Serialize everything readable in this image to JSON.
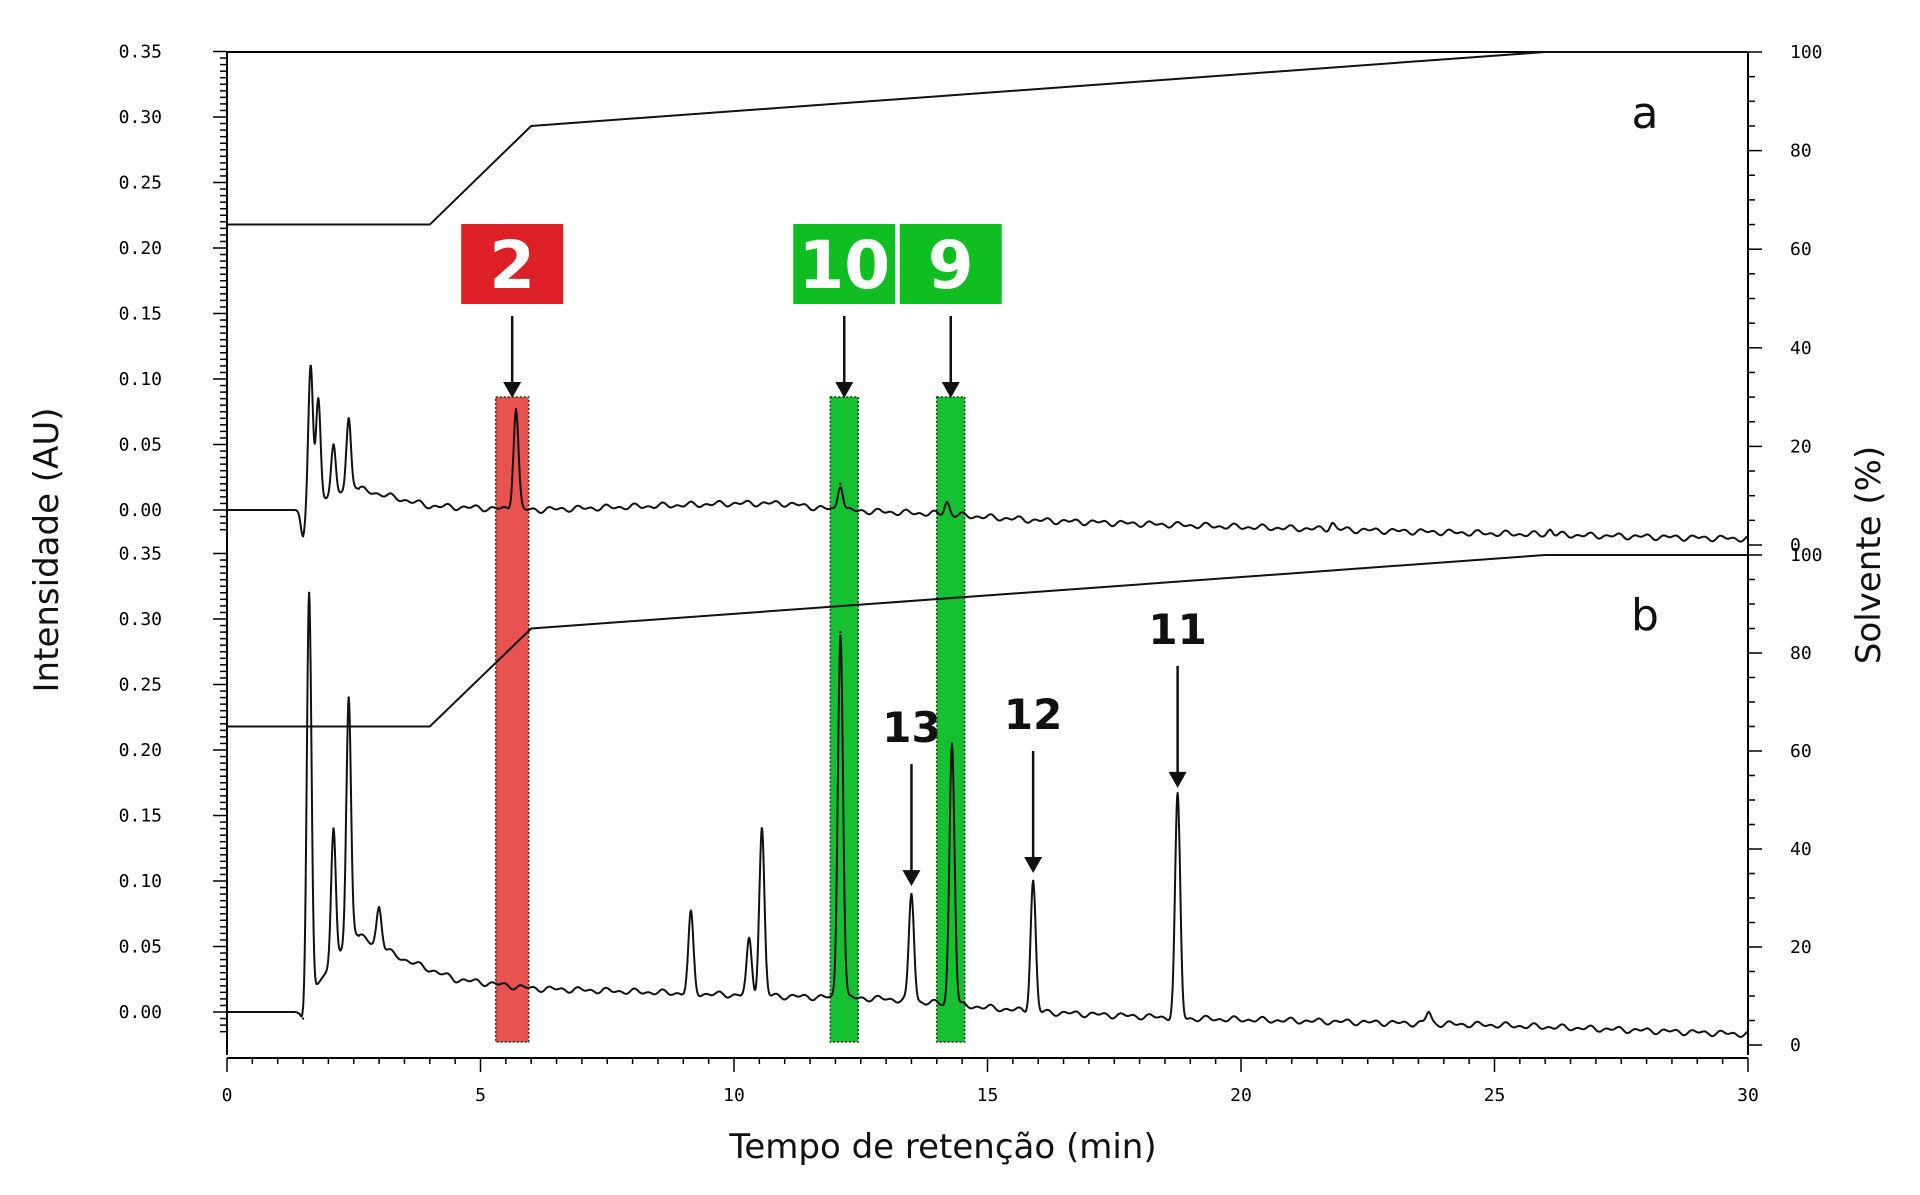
{
  "chart_data": [
    {
      "type": "line",
      "panel": "a",
      "xlabel": "Tempo de retenção (min)",
      "ylabel_left": "Intensidade (AU)",
      "ylabel_right": "Solvente (%)",
      "xlim": [
        0,
        30
      ],
      "ylim_left": [
        -0.03,
        0.36
      ],
      "ylim_right": [
        0,
        100
      ],
      "x_ticks": [
        "0",
        "5",
        "10",
        "15",
        "20",
        "25",
        "30"
      ],
      "y_ticks_left": [
        "0.00",
        "0.05",
        "0.10",
        "0.15",
        "0.20",
        "0.25",
        "0.30",
        "0.35"
      ],
      "y_ticks_right": [
        "0",
        "20",
        "40",
        "60",
        "80",
        "100"
      ],
      "series": [
        {
          "role": "solvent gradient",
          "x": [
            0,
            4,
            6,
            26,
            30
          ],
          "y": [
            65,
            65,
            85,
            100,
            100
          ]
        },
        {
          "role": "chromatogram",
          "baseline": [
            [
              0,
              0.0
            ],
            [
              1.4,
              0.0
            ],
            [
              2.5,
              0.017
            ],
            [
              4,
              0.003
            ],
            [
              6,
              0.0
            ],
            [
              10,
              0.005
            ],
            [
              11,
              0.005
            ],
            [
              12,
              0.0
            ],
            [
              14,
              -0.003
            ],
            [
              16,
              -0.008
            ],
            [
              20,
              -0.013
            ],
            [
              25,
              -0.018
            ],
            [
              30,
              -0.022
            ]
          ],
          "peaks": [
            {
              "x": 1.5,
              "y": -0.02
            },
            {
              "x": 1.65,
              "y": 0.11
            },
            {
              "x": 1.8,
              "y": 0.085
            },
            {
              "x": 2.1,
              "y": 0.05
            },
            {
              "x": 2.4,
              "y": 0.07
            },
            {
              "x": 5.7,
              "y": 0.077
            },
            {
              "x": 12.1,
              "y": 0.02
            },
            {
              "x": 14.2,
              "y": 0.006
            },
            {
              "x": 21.8,
              "y": -0.01
            },
            {
              "x": 26.1,
              "y": -0.015
            }
          ]
        }
      ],
      "highlights": [
        {
          "label": "2",
          "x_range": [
            5.3,
            5.95
          ],
          "color": "#e8524f",
          "label_bg": "#dd2026"
        },
        {
          "label": "10",
          "x_range": [
            11.9,
            12.45
          ],
          "color": "#15c130",
          "label_bg": "#0fbf22"
        },
        {
          "label": "9",
          "x_range": [
            14.0,
            14.55
          ],
          "color": "#15c130",
          "label_bg": "#0fbf22"
        }
      ]
    },
    {
      "type": "line",
      "panel": "b",
      "xlabel": "Tempo de retenção (min)",
      "xlim": [
        0,
        30
      ],
      "ylim_left": [
        -0.03,
        0.36
      ],
      "ylim_right": [
        0,
        100
      ],
      "y_ticks_left": [
        "0.00",
        "0.05",
        "0.10",
        "0.15",
        "0.20",
        "0.25",
        "0.30",
        "0.35"
      ],
      "y_ticks_right": [
        "0",
        "20",
        "40",
        "60",
        "80",
        "100"
      ],
      "series": [
        {
          "role": "solvent gradient",
          "x": [
            0,
            4,
            6,
            26,
            30
          ],
          "y": [
            65,
            65,
            85,
            100,
            100
          ]
        },
        {
          "role": "chromatogram",
          "baseline": [
            [
              0,
              0.0
            ],
            [
              1.4,
              0.0
            ],
            [
              2.5,
              0.06
            ],
            [
              3.5,
              0.04
            ],
            [
              4.5,
              0.025
            ],
            [
              6,
              0.018
            ],
            [
              10,
              0.013
            ],
            [
              13,
              0.01
            ],
            [
              16,
              0.0
            ],
            [
              19,
              -0.005
            ],
            [
              25,
              -0.01
            ],
            [
              30,
              -0.017
            ]
          ],
          "peaks": [
            {
              "x": 1.5,
              "y": -0.005
            },
            {
              "x": 1.62,
              "y": 0.32
            },
            {
              "x": 2.1,
              "y": 0.14
            },
            {
              "x": 2.4,
              "y": 0.24
            },
            {
              "x": 3.0,
              "y": 0.08
            },
            {
              "x": 9.15,
              "y": 0.075
            },
            {
              "x": 10.3,
              "y": 0.055
            },
            {
              "x": 10.55,
              "y": 0.14
            },
            {
              "x": 12.1,
              "y": 0.29
            },
            {
              "x": 13.5,
              "y": 0.09
            },
            {
              "x": 14.3,
              "y": 0.205
            },
            {
              "x": 15.9,
              "y": 0.1
            },
            {
              "x": 18.75,
              "y": 0.165
            },
            {
              "x": 23.7,
              "y": 0.0
            }
          ]
        }
      ],
      "annotations": [
        {
          "label": "13",
          "x": 13.5
        },
        {
          "label": "12",
          "x": 15.9
        },
        {
          "label": "11",
          "x": 18.75
        }
      ]
    }
  ],
  "labels": {
    "x_axis_title": "Tempo de retenção (min)",
    "y_axis_left_title": "Intensidade (AU)",
    "y_axis_right_title": "Solvente (%)",
    "panel_a": "a",
    "panel_b": "b",
    "box_2": "2",
    "box_10": "10",
    "box_9": "9",
    "ann_13": "13",
    "ann_12": "12",
    "ann_11": "11"
  }
}
